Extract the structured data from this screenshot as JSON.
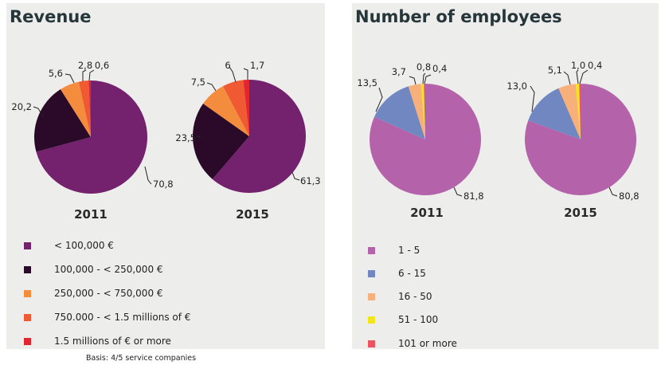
{
  "charts": [
    {
      "title": "Revenue",
      "pies": [
        {
          "year": "2011",
          "values": [
            70.8,
            20.2,
            5.6,
            2.8,
            0.6
          ],
          "labels": [
            "70,8",
            "20,2",
            "5,6",
            "2,8",
            "0,6"
          ]
        },
        {
          "year": "2015",
          "values": [
            61.3,
            23.5,
            7.5,
            6,
            1.7
          ],
          "labels": [
            "61,3",
            "23,5",
            "7,5",
            "6",
            "1,7"
          ]
        }
      ],
      "legend": [
        {
          "label": "< 100,000 €",
          "color": "#74226d"
        },
        {
          "label": "100,000 - < 250,000 €",
          "color": "#2a0a28"
        },
        {
          "label": "250,000 - < 750,000 €",
          "color": "#f48c3e"
        },
        {
          "label": "750.000 - < 1.5 millions of  €",
          "color": "#ef5a32"
        },
        {
          "label": "1.5 millions of  € or more",
          "color": "#e2262d"
        }
      ]
    },
    {
      "title": "Number of employees",
      "pies": [
        {
          "year": "2011",
          "values": [
            81.8,
            13.5,
            3.7,
            0.8,
            0.4
          ],
          "labels": [
            "81,8",
            "13,5",
            "3,7",
            "0,8",
            "0,4"
          ]
        },
        {
          "year": "2015",
          "values": [
            80.8,
            13.0,
            5.1,
            1.0,
            0.4
          ],
          "labels": [
            "80,8",
            "13,0",
            "5,1",
            "1,0",
            "0,4"
          ]
        }
      ],
      "legend": [
        {
          "label": "1 - 5",
          "color": "#b463ab"
        },
        {
          "label": "6 - 15",
          "color": "#7087c2"
        },
        {
          "label": "16 - 50",
          "color": "#f8b07a"
        },
        {
          "label": "51 - 100",
          "color": "#f3e51c"
        },
        {
          "label": "101 or more",
          "color": "#ec5462"
        }
      ]
    }
  ],
  "chart_data": [
    {
      "type": "pie",
      "title": "Revenue",
      "categories": [
        "< 100,000 €",
        "100,000 - < 250,000 €",
        "250,000 - < 750,000 €",
        "750.000 - < 1.5 millions of  €",
        "1.5 millions of  € or more"
      ],
      "series": [
        {
          "name": "2011",
          "values": [
            70.8,
            20.2,
            5.6,
            2.8,
            0.6
          ]
        },
        {
          "name": "2015",
          "values": [
            61.3,
            23.5,
            7.5,
            6,
            1.7
          ]
        }
      ],
      "legend_position": "bottom-left"
    },
    {
      "type": "pie",
      "title": "Number of employees",
      "categories": [
        "1 - 5",
        "6 - 15",
        "16 - 50",
        "51 - 100",
        "101 or more"
      ],
      "series": [
        {
          "name": "2011",
          "values": [
            81.8,
            13.5,
            3.7,
            0.8,
            0.4
          ]
        },
        {
          "name": "2015",
          "values": [
            80.8,
            13.0,
            5.1,
            1.0,
            0.4
          ]
        }
      ],
      "legend_position": "bottom-left"
    }
  ],
  "footnote": "Basis: 4/5 service companies"
}
